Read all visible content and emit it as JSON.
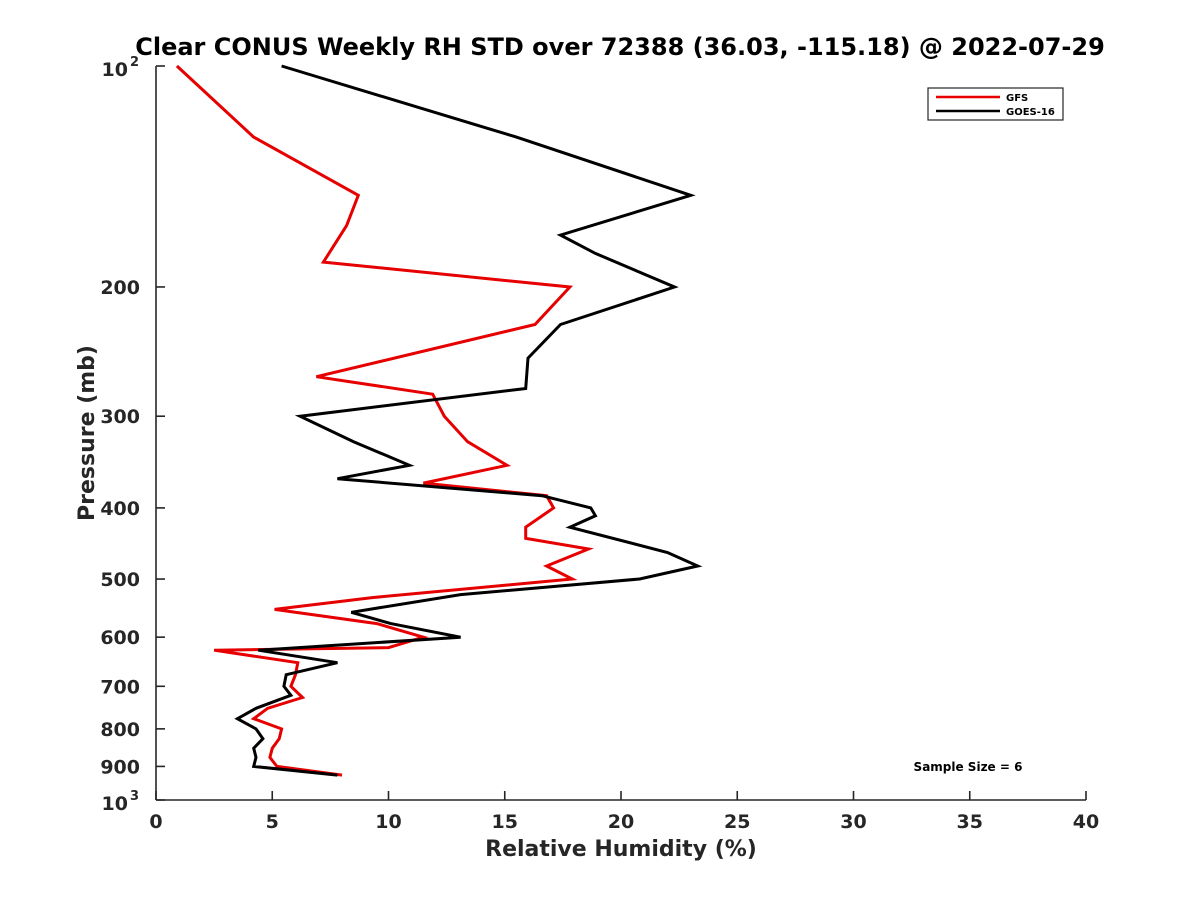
{
  "chart_data": {
    "type": "line",
    "title": "Clear CONUS Weekly RH STD over 72388 (36.03, -115.18) @ 2022-07-29",
    "xlabel": "Relative Humidity (%)",
    "ylabel": "Pressure (mb)",
    "xlim": [
      0,
      40
    ],
    "ylim": [
      100,
      1000
    ],
    "y_scale": "log",
    "y_reversed": true,
    "grid": false,
    "legend_position": "top-right",
    "x_ticks": [
      "0",
      "5",
      "10",
      "15",
      "20",
      "25",
      "30",
      "35",
      "40"
    ],
    "y_ticks": [
      "200",
      "300",
      "400",
      "500",
      "600",
      "700",
      "800",
      "900"
    ],
    "y_tick_exp_top": {
      "base": "10",
      "exp": "2"
    },
    "y_tick_exp_bottom": {
      "base": "10",
      "exp": "3"
    },
    "series": [
      {
        "name": "GFS",
        "color": "#e60000",
        "points": [
          [
            0.9,
            100
          ],
          [
            4.2,
            125
          ],
          [
            8.7,
            150
          ],
          [
            8.2,
            165
          ],
          [
            7.2,
            185
          ],
          [
            17.8,
            200
          ],
          [
            16.3,
            225
          ],
          [
            6.9,
            265
          ],
          [
            11.9,
            280
          ],
          [
            12.4,
            300
          ],
          [
            13.4,
            325
          ],
          [
            15.1,
            350
          ],
          [
            11.5,
            370
          ],
          [
            16.8,
            385
          ],
          [
            17.1,
            400
          ],
          [
            15.9,
            425
          ],
          [
            15.9,
            440
          ],
          [
            18.6,
            455
          ],
          [
            16.8,
            480
          ],
          [
            17.9,
            500
          ],
          [
            9.3,
            530
          ],
          [
            5.1,
            550
          ],
          [
            9.5,
            575
          ],
          [
            11.5,
            600
          ],
          [
            10.0,
            620
          ],
          [
            2.5,
            625
          ],
          [
            6.1,
            650
          ],
          [
            6.0,
            675
          ],
          [
            5.8,
            700
          ],
          [
            6.3,
            725
          ],
          [
            4.8,
            750
          ],
          [
            4.2,
            775
          ],
          [
            5.4,
            800
          ],
          [
            5.3,
            825
          ],
          [
            5.0,
            850
          ],
          [
            4.9,
            875
          ],
          [
            5.2,
            900
          ],
          [
            8.0,
            925
          ]
        ]
      },
      {
        "name": "GOES-16",
        "color": "#000000",
        "points": [
          [
            5.4,
            100
          ],
          [
            15.5,
            125
          ],
          [
            23.0,
            150
          ],
          [
            17.4,
            170
          ],
          [
            18.9,
            180
          ],
          [
            22.3,
            200
          ],
          [
            17.4,
            225
          ],
          [
            16.0,
            250
          ],
          [
            15.9,
            275
          ],
          [
            6.2,
            300
          ],
          [
            8.5,
            325
          ],
          [
            10.9,
            350
          ],
          [
            7.8,
            365
          ],
          [
            16.6,
            385
          ],
          [
            18.7,
            400
          ],
          [
            18.9,
            410
          ],
          [
            17.8,
            425
          ],
          [
            22.0,
            460
          ],
          [
            23.3,
            480
          ],
          [
            20.8,
            500
          ],
          [
            13.1,
            525
          ],
          [
            8.4,
            555
          ],
          [
            10.1,
            575
          ],
          [
            13.1,
            600
          ],
          [
            4.4,
            625
          ],
          [
            7.8,
            650
          ],
          [
            5.6,
            675
          ],
          [
            5.5,
            700
          ],
          [
            5.8,
            720
          ],
          [
            4.3,
            750
          ],
          [
            3.5,
            775
          ],
          [
            4.3,
            800
          ],
          [
            4.6,
            825
          ],
          [
            4.2,
            850
          ],
          [
            4.3,
            875
          ],
          [
            4.2,
            900
          ],
          [
            7.8,
            925
          ]
        ]
      }
    ],
    "annotation": "Sample Size = 6"
  }
}
